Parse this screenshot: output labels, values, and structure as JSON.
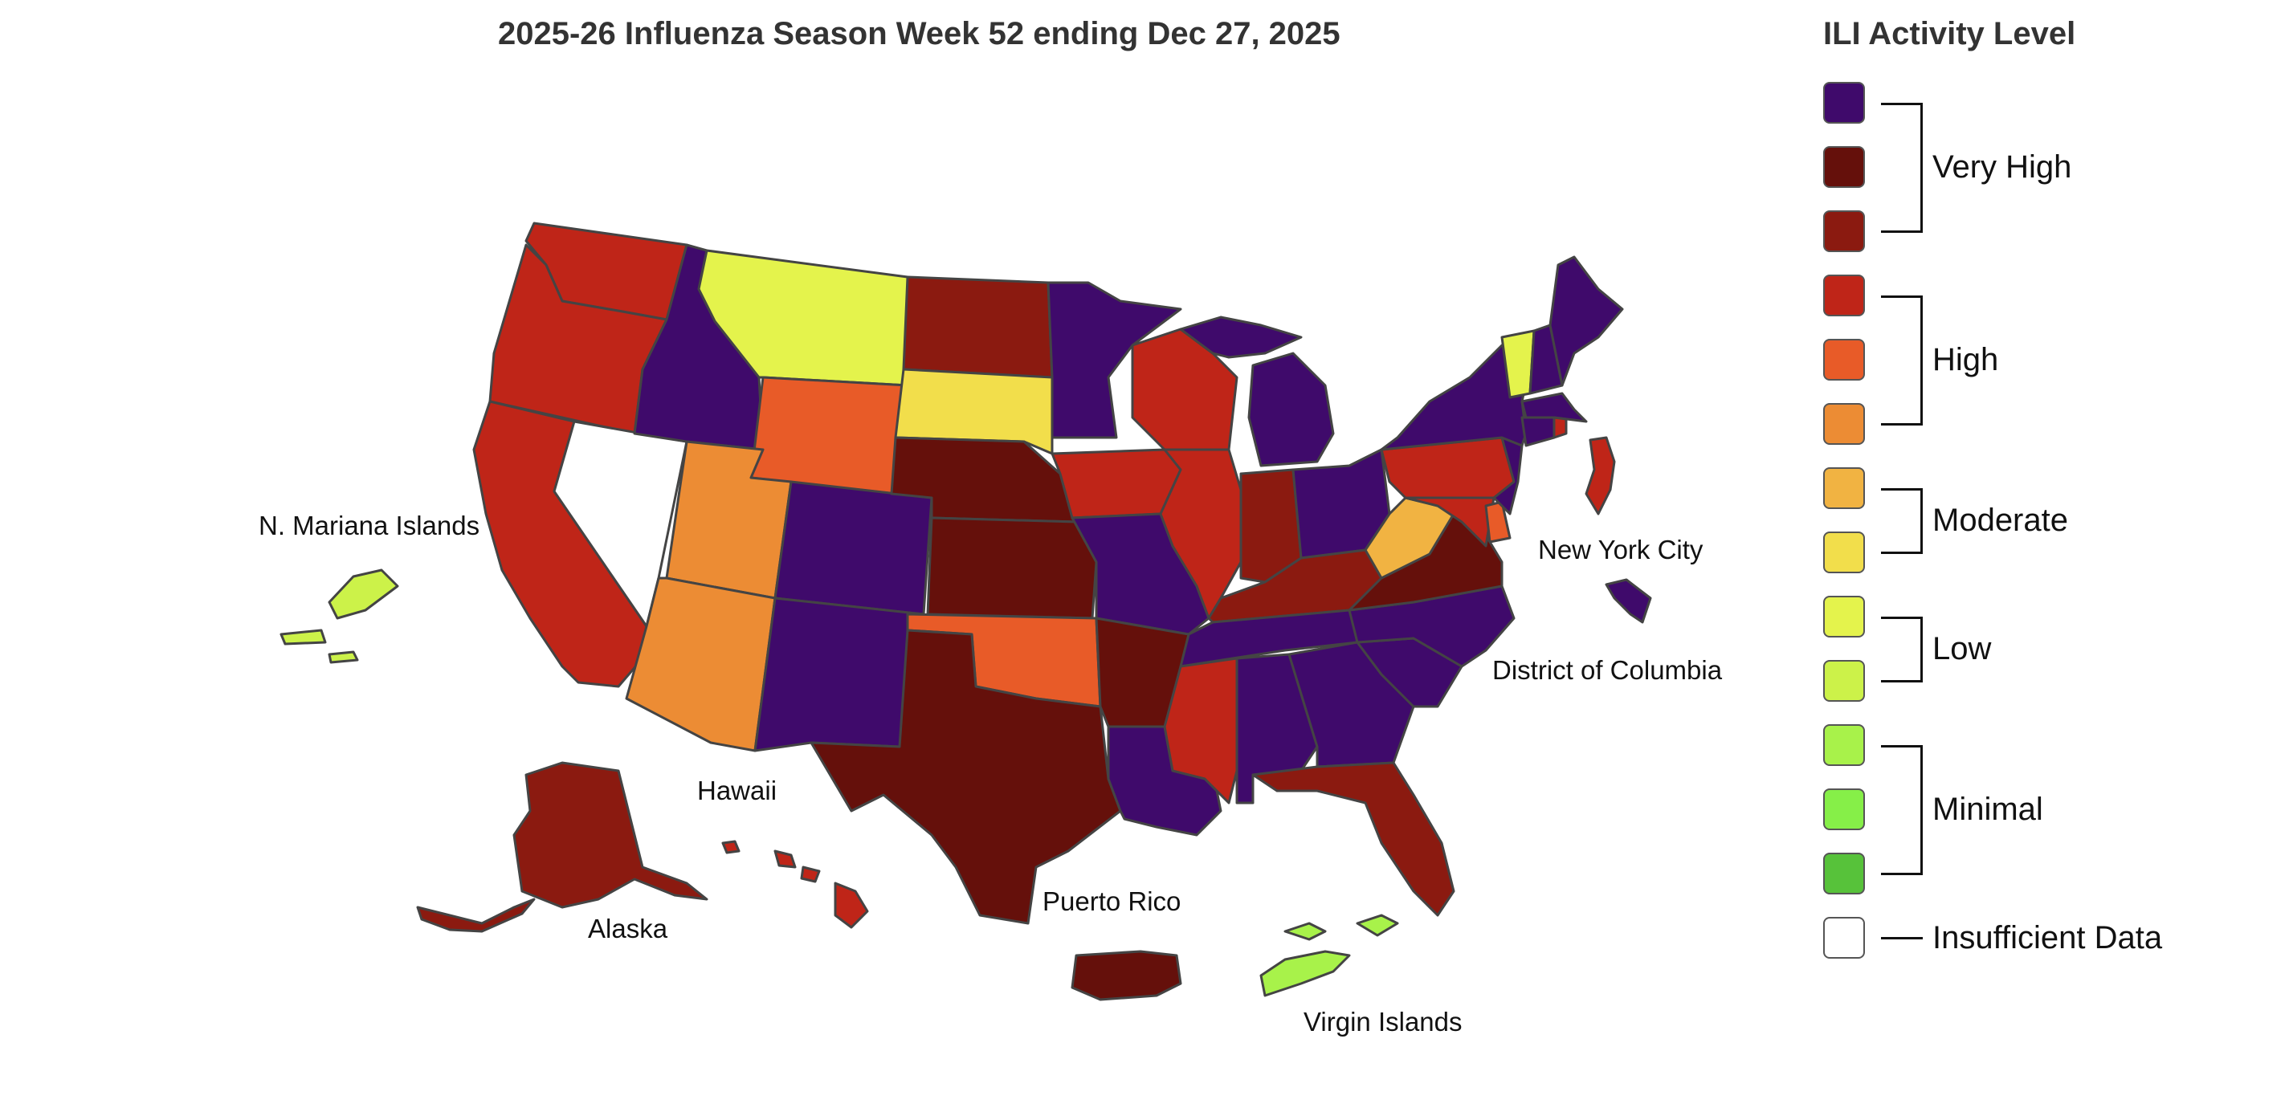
{
  "title": "2025-26 Influenza Season Week 52 ending Dec 27, 2025",
  "legend": {
    "title": "ILI Activity Level",
    "swatches": [
      {
        "color": "#3f0a6b"
      },
      {
        "color": "#65100b"
      },
      {
        "color": "#8b1a10"
      },
      {
        "color": "#bf2518"
      },
      {
        "color": "#e85b28"
      },
      {
        "color": "#ec8c34"
      },
      {
        "color": "#f1b342"
      },
      {
        "color": "#f2de4b"
      },
      {
        "color": "#e4f34c"
      },
      {
        "color": "#ccf249"
      },
      {
        "color": "#a8f24a"
      },
      {
        "color": "#86ef48"
      },
      {
        "color": "#57c23a"
      },
      {
        "color": "#ffffff"
      }
    ],
    "groups": [
      {
        "label": "Very High"
      },
      {
        "label": "High"
      },
      {
        "label": "Moderate"
      },
      {
        "label": "Low"
      },
      {
        "label": "Minimal"
      },
      {
        "label": "Insufficient Data"
      }
    ]
  },
  "territory_labels": {
    "n_mariana": "N. Mariana Islands",
    "nyc": "New York City",
    "dc": "District of Columbia",
    "hawaii": "Hawaii",
    "alaska": "Alaska",
    "puerto_rico": "Puerto Rico",
    "virgin_islands": "Virgin Islands"
  },
  "regions": [
    {
      "id": "WA",
      "level": "high-3"
    },
    {
      "id": "OR",
      "level": "high-3"
    },
    {
      "id": "CA",
      "level": "high-3"
    },
    {
      "id": "NV",
      "level": "insufficient"
    },
    {
      "id": "ID",
      "level": "very-high-1"
    },
    {
      "id": "MT",
      "level": "low-1"
    },
    {
      "id": "WY",
      "level": "high-2"
    },
    {
      "id": "UT",
      "level": "high-1"
    },
    {
      "id": "AZ",
      "level": "high-1"
    },
    {
      "id": "CO",
      "level": "very-high-1"
    },
    {
      "id": "NM",
      "level": "very-high-1"
    },
    {
      "id": "ND",
      "level": "very-high-3"
    },
    {
      "id": "SD",
      "level": "moderate-1"
    },
    {
      "id": "NE",
      "level": "very-high-2"
    },
    {
      "id": "KS",
      "level": "very-high-2"
    },
    {
      "id": "OK",
      "level": "high-2"
    },
    {
      "id": "TX",
      "level": "very-high-2"
    },
    {
      "id": "MN",
      "level": "very-high-1"
    },
    {
      "id": "IA",
      "level": "high-3"
    },
    {
      "id": "MO",
      "level": "very-high-1"
    },
    {
      "id": "AR",
      "level": "very-high-2"
    },
    {
      "id": "LA",
      "level": "very-high-1"
    },
    {
      "id": "WI",
      "level": "high-3"
    },
    {
      "id": "IL",
      "level": "high-3"
    },
    {
      "id": "MI",
      "level": "very-high-1"
    },
    {
      "id": "IN",
      "level": "very-high-3"
    },
    {
      "id": "OH",
      "level": "very-high-1"
    },
    {
      "id": "KY",
      "level": "very-high-3"
    },
    {
      "id": "TN",
      "level": "very-high-1"
    },
    {
      "id": "MS",
      "level": "high-3"
    },
    {
      "id": "AL",
      "level": "very-high-1"
    },
    {
      "id": "GA",
      "level": "very-high-1"
    },
    {
      "id": "FL",
      "level": "very-high-3"
    },
    {
      "id": "SC",
      "level": "very-high-1"
    },
    {
      "id": "NC",
      "level": "very-high-1"
    },
    {
      "id": "VA",
      "level": "very-high-2"
    },
    {
      "id": "WV",
      "level": "moderate-2"
    },
    {
      "id": "PA",
      "level": "high-3"
    },
    {
      "id": "NY",
      "level": "very-high-1"
    },
    {
      "id": "NJ",
      "level": "very-high-1"
    },
    {
      "id": "MD",
      "level": "high-3"
    },
    {
      "id": "DE",
      "level": "high-2"
    },
    {
      "id": "VT",
      "level": "low-1"
    },
    {
      "id": "NH",
      "level": "very-high-1"
    },
    {
      "id": "ME",
      "level": "very-high-1"
    },
    {
      "id": "MA",
      "level": "very-high-1"
    },
    {
      "id": "CT",
      "level": "very-high-1"
    },
    {
      "id": "RI",
      "level": "high-3"
    },
    {
      "id": "AK",
      "level": "very-high-3"
    },
    {
      "id": "HI",
      "level": "high-3"
    },
    {
      "id": "PR",
      "level": "very-high-2"
    },
    {
      "id": "VI",
      "level": "minimal-1"
    },
    {
      "id": "MP",
      "level": "low-2"
    },
    {
      "id": "NYC",
      "level": "very-high-1"
    },
    {
      "id": "DC",
      "level": "high-3"
    }
  ]
}
